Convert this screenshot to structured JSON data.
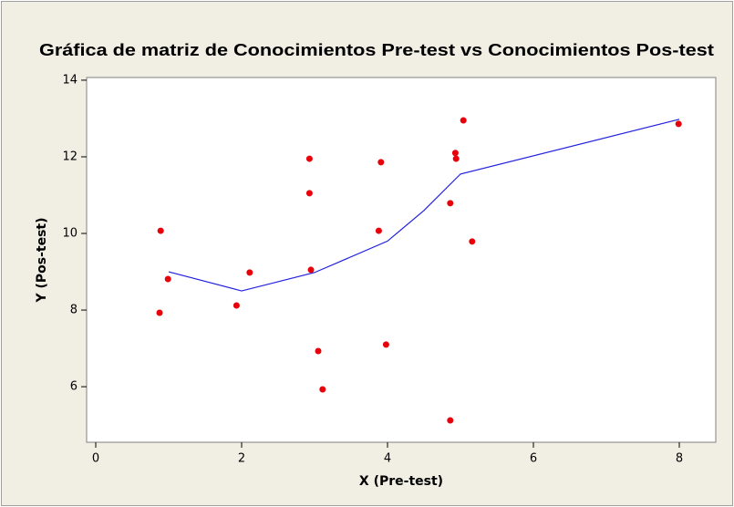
{
  "chart_data": {
    "type": "scatter",
    "title": "Gráfica de matriz de Conocimientos Pre-test vs Conocimientos Pos-test",
    "x_label": "X (Pre-test)",
    "y_label": "Y (Pos-test)",
    "xlim": [
      -0.125,
      8.5
    ],
    "ylim": [
      4.55,
      14.07
    ],
    "xticks": [
      0,
      2,
      4,
      6,
      8
    ],
    "yticks": [
      6,
      8,
      10,
      12,
      14
    ],
    "grid": false,
    "points": {
      "color": "#e8000b",
      "x": [
        0.89,
        0.99,
        0.875,
        1.93,
        2.11,
        2.93,
        2.93,
        2.95,
        3.05,
        3.11,
        3.91,
        3.88,
        3.98,
        5.04,
        4.93,
        4.94,
        4.86,
        5.16,
        4.86,
        7.99
      ],
      "y": [
        10.07,
        8.81,
        7.93,
        8.12,
        8.98,
        11.95,
        11.05,
        9.05,
        6.93,
        5.93,
        11.86,
        10.07,
        7.1,
        12.95,
        12.1,
        11.95,
        10.79,
        9.79,
        5.12,
        12.86
      ]
    },
    "fit_line": {
      "color": "#2020e0",
      "x": [
        1.0,
        2.0,
        3.0,
        4.0,
        4.5,
        5.0,
        8.0
      ],
      "y": [
        9.0,
        8.5,
        8.98,
        9.8,
        10.6,
        11.55,
        12.98
      ]
    }
  }
}
